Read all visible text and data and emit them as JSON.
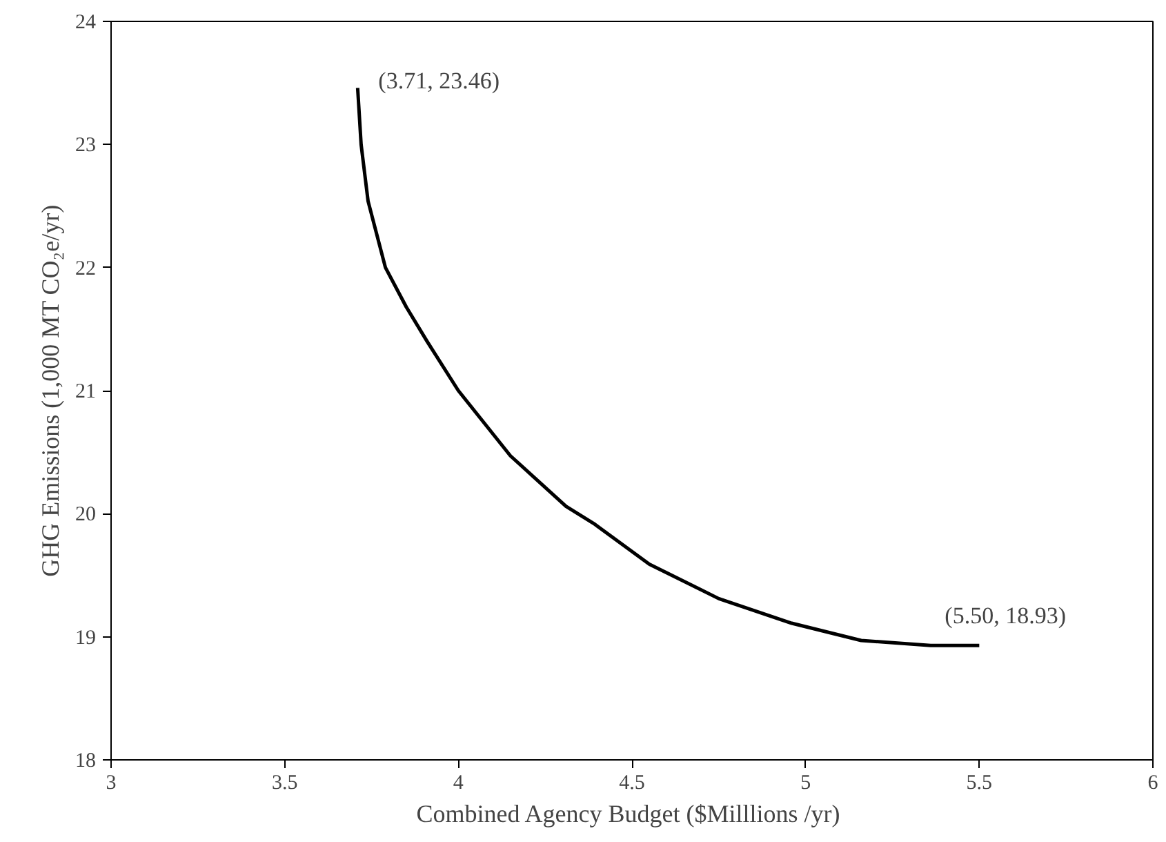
{
  "chart_data": {
    "type": "line",
    "xlabel": "Combined Agency  Budget ($Milllions /yr)",
    "ylabel": "GHG Emissions (1,000 MT CO₂e/yr)",
    "xlim": [
      3,
      6
    ],
    "xticks": [
      3,
      3.5,
      4,
      4.5,
      5,
      5.5,
      6
    ],
    "ylim": [
      18,
      24
    ],
    "yticks": [
      18,
      19,
      20,
      21,
      22,
      23,
      24
    ],
    "grid": false,
    "marker": "none",
    "line_style": "solid",
    "series": [
      {
        "color": "#000000",
        "x": [
          3.71,
          3.72,
          3.74,
          3.79,
          3.85,
          3.91,
          4.0,
          4.15,
          4.31,
          4.39,
          4.55,
          4.75,
          4.96,
          5.16,
          5.36,
          5.5
        ],
        "values": [
          23.46,
          23.0,
          22.54,
          22.0,
          21.68,
          21.4,
          21.0,
          20.47,
          20.06,
          19.92,
          19.59,
          19.31,
          19.11,
          18.97,
          18.93,
          18.93
        ]
      }
    ],
    "annotations": [
      {
        "text": "(3.71, 23.46)",
        "x": 3.71,
        "y": 23.46
      },
      {
        "text": "(5.50, 18.93)",
        "x": 5.5,
        "y": 18.93
      }
    ]
  }
}
